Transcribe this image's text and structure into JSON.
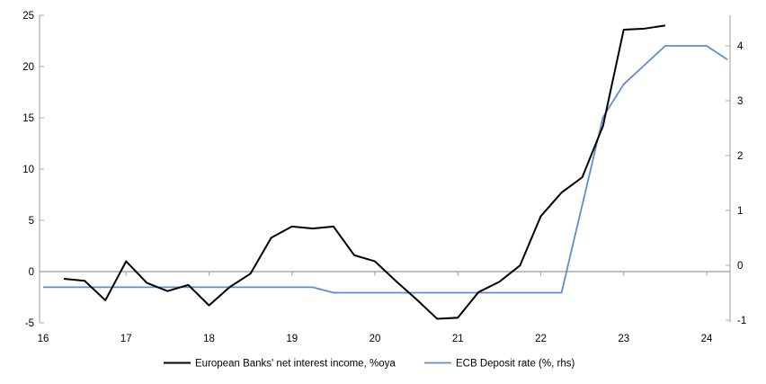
{
  "chart_data": {
    "type": "line",
    "legend_position": "bottom",
    "grid": "horizontal zero line only, with small year tick marks on it",
    "x_axis": {
      "ticks": [
        "16",
        "17",
        "18",
        "19",
        "20",
        "21",
        "22",
        "23",
        "24"
      ],
      "tick_values": [
        16,
        17,
        18,
        19,
        20,
        21,
        22,
        23,
        24
      ],
      "range": [
        16,
        24.3
      ]
    },
    "left_axis": {
      "ticks": [
        25,
        20,
        15,
        10,
        5,
        0,
        -5
      ],
      "range": [
        -5,
        25
      ]
    },
    "right_axis": {
      "ticks": [
        4,
        3,
        2,
        1,
        0,
        -1
      ],
      "range": [
        -1,
        4.67
      ]
    },
    "series": [
      {
        "name": "European Banks' net interest income, %oya",
        "axis": "left",
        "color": "#000000",
        "x": [
          16.25,
          16.5,
          16.75,
          17.0,
          17.25,
          17.5,
          17.75,
          18.0,
          18.25,
          18.5,
          18.75,
          19.0,
          19.25,
          19.5,
          19.75,
          20.0,
          20.25,
          20.5,
          20.75,
          21.0,
          21.25,
          21.5,
          21.75,
          22.0,
          22.25,
          22.5,
          22.75,
          23.0,
          23.25,
          23.5
        ],
        "values": [
          -0.7,
          -0.9,
          -2.8,
          1.0,
          -1.1,
          -1.9,
          -1.3,
          -3.3,
          -1.5,
          -0.2,
          3.3,
          4.4,
          4.2,
          4.4,
          1.6,
          1.0,
          -0.9,
          -2.7,
          -4.6,
          -4.5,
          -2.0,
          -1.0,
          0.6,
          5.4,
          7.7,
          9.2,
          14.2,
          23.6,
          23.7,
          24.0
        ]
      },
      {
        "name": "ECB Deposit rate (%, rhs)",
        "axis": "right",
        "color": "#5b8fc9",
        "x": [
          16.0,
          16.25,
          16.5,
          16.75,
          17.0,
          17.25,
          17.5,
          17.75,
          18.0,
          18.25,
          18.5,
          18.75,
          19.0,
          19.25,
          19.5,
          19.75,
          20.0,
          20.25,
          20.5,
          20.75,
          21.0,
          21.25,
          21.5,
          21.75,
          22.0,
          22.25,
          22.5,
          22.75,
          23.0,
          23.25,
          23.5,
          23.75,
          24.0,
          24.25
        ],
        "values": [
          -0.4,
          -0.4,
          -0.4,
          -0.4,
          -0.4,
          -0.4,
          -0.4,
          -0.4,
          -0.4,
          -0.4,
          -0.4,
          -0.4,
          -0.4,
          -0.4,
          -0.5,
          -0.5,
          -0.5,
          -0.5,
          -0.5,
          -0.5,
          -0.5,
          -0.5,
          -0.5,
          -0.5,
          -0.5,
          -0.5,
          1.1,
          2.7,
          3.3,
          3.65,
          4.0,
          4.0,
          4.0,
          3.75
        ]
      }
    ]
  },
  "colors": {
    "axis_line": "#b3b3b3",
    "zero_line": "#a9a9a9",
    "text": "#000000",
    "background": "#ffffff",
    "nii_line": "#000000",
    "ecb_line": "#5b8fc9"
  }
}
